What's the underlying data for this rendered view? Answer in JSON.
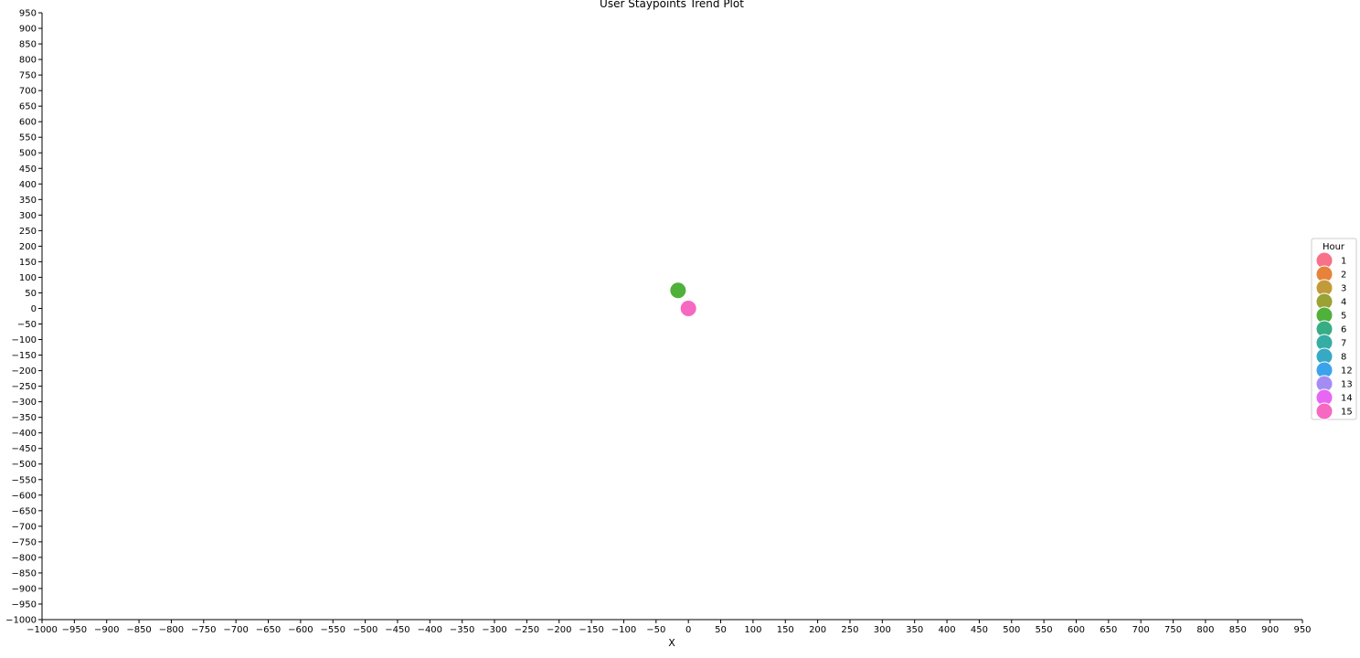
{
  "chart_data": {
    "type": "scatter",
    "title": "User Staypoints Trend Plot",
    "xlabel": "X",
    "ylabel": "",
    "xlim": [
      -1000,
      950
    ],
    "ylim": [
      -1000,
      950
    ],
    "x_ticks": [
      -1000,
      -950,
      -900,
      -850,
      -800,
      -750,
      -700,
      -650,
      -600,
      -550,
      -500,
      -450,
      -400,
      -350,
      -300,
      -250,
      -200,
      -150,
      -100,
      -50,
      0,
      50,
      100,
      150,
      200,
      250,
      300,
      350,
      400,
      450,
      500,
      550,
      600,
      650,
      700,
      750,
      800,
      850,
      900,
      950
    ],
    "y_ticks": [
      950,
      900,
      850,
      800,
      750,
      700,
      650,
      600,
      550,
      500,
      450,
      400,
      350,
      300,
      250,
      200,
      150,
      100,
      50,
      0,
      -50,
      -100,
      -150,
      -200,
      -250,
      -300,
      -350,
      -400,
      -450,
      -500,
      -550,
      -600,
      -650,
      -700,
      -750,
      -800,
      -850,
      -900,
      -950,
      -1000
    ],
    "grid": false,
    "legend": {
      "title": "Hour",
      "placement": "right",
      "entries": [
        {
          "label": "1",
          "color": "#f77189"
        },
        {
          "label": "2",
          "color": "#e7823a"
        },
        {
          "label": "3",
          "color": "#c39a3a"
        },
        {
          "label": "4",
          "color": "#99a233"
        },
        {
          "label": "5",
          "color": "#4fb03a"
        },
        {
          "label": "6",
          "color": "#36ad85"
        },
        {
          "label": "7",
          "color": "#36ada4"
        },
        {
          "label": "8",
          "color": "#38a9c5"
        },
        {
          "label": "12",
          "color": "#3ba3ec"
        },
        {
          "label": "13",
          "color": "#a48cf4"
        },
        {
          "label": "14",
          "color": "#e866f4"
        },
        {
          "label": "15",
          "color": "#f668c2"
        }
      ]
    },
    "points": [
      {
        "x": -16,
        "y": 58,
        "hour": "5",
        "color": "#4fb03a"
      },
      {
        "x": 0,
        "y": 0,
        "hour": "15",
        "color": "#f668c2"
      }
    ]
  }
}
